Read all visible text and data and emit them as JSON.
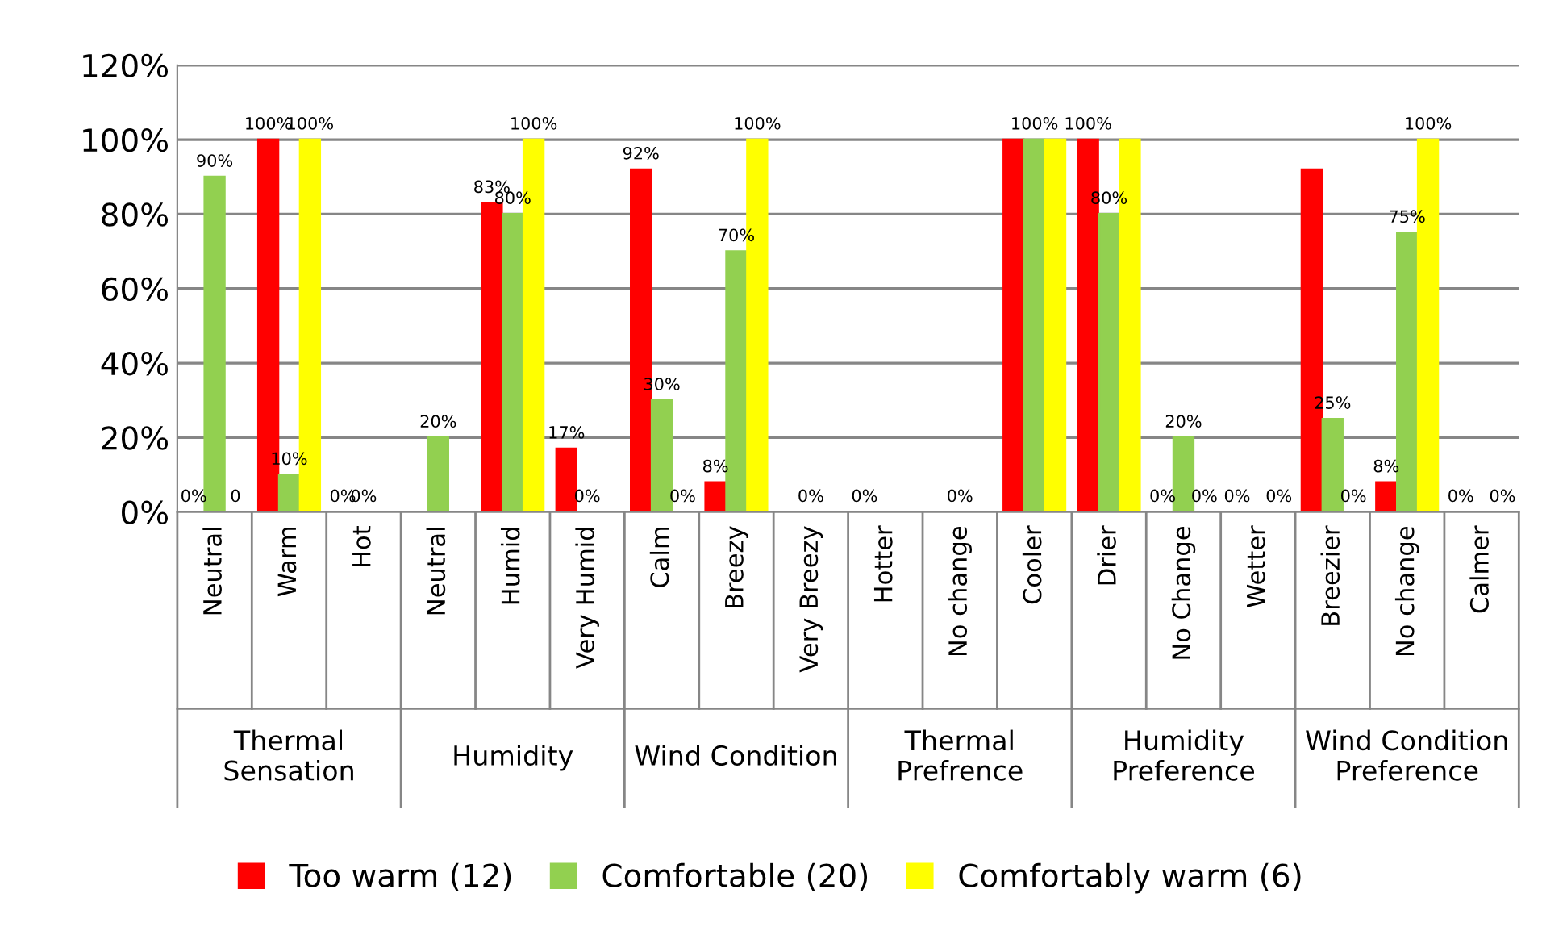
{
  "chart_data": {
    "type": "bar",
    "categories": [
      "Neutral",
      "Warm",
      "Hot",
      "Neutral",
      "Humid",
      "Very Humid",
      "Calm",
      "Breezy",
      "Very Breezy",
      "Hotter",
      "No change",
      "Cooler",
      "Drier",
      "No Change",
      "Wetter",
      "Breezier",
      "No change",
      "Calmer"
    ],
    "series": [
      {
        "name": "Too warm (12)",
        "color": "#ff0000",
        "values": [
          0,
          100,
          0,
          0,
          83,
          17,
          92,
          8,
          0,
          0,
          0,
          100,
          100,
          0,
          0,
          92,
          8,
          0
        ],
        "value_labels": [
          "0%",
          "100%",
          "0%",
          null,
          "83%",
          "17%",
          "92%",
          "8%",
          null,
          "0%",
          null,
          null,
          "100%",
          "0%",
          "0%",
          null,
          "8%",
          "0%"
        ]
      },
      {
        "name": "Comfortable (20)",
        "color": "#92d050",
        "values": [
          90,
          10,
          0,
          20,
          80,
          0,
          30,
          70,
          0,
          0,
          0,
          100,
          80,
          20,
          0,
          25,
          75,
          0
        ],
        "value_labels": [
          "90%",
          "10%",
          "0%",
          "20%",
          "80%",
          "0%",
          "30%",
          "70%",
          "0%",
          null,
          "0%",
          "100%",
          "80%",
          "20%",
          null,
          "25%",
          "75%",
          null
        ]
      },
      {
        "name": "Comfortably warm (6)",
        "color": "#ffff00",
        "values": [
          0,
          100,
          0,
          0,
          100,
          0,
          0,
          100,
          0,
          0,
          0,
          100,
          100,
          0,
          0,
          0,
          100,
          0
        ],
        "value_labels": [
          "0",
          "100%",
          null,
          null,
          "100%",
          null,
          "0%",
          "100%",
          null,
          null,
          null,
          null,
          null,
          "0%",
          "0%",
          "0%",
          "100%",
          "0%"
        ]
      }
    ],
    "ylim": [
      0,
      120
    ],
    "yticks": [
      {
        "value": 0,
        "label": "0%"
      },
      {
        "value": 20,
        "label": "20%"
      },
      {
        "value": 40,
        "label": "40%"
      },
      {
        "value": 60,
        "label": "60%"
      },
      {
        "value": 80,
        "label": "80%"
      },
      {
        "value": 100,
        "label": "100%"
      },
      {
        "value": 120,
        "label": "120%"
      }
    ],
    "grid": "y",
    "legend": "bottom",
    "annotations": [
      "Thermal\nSensation",
      "Humidity",
      "Wind Condition",
      "Thermal\nPrefrence",
      "Humidity\nPreference",
      "Wind Condition\nPreference"
    ]
  }
}
